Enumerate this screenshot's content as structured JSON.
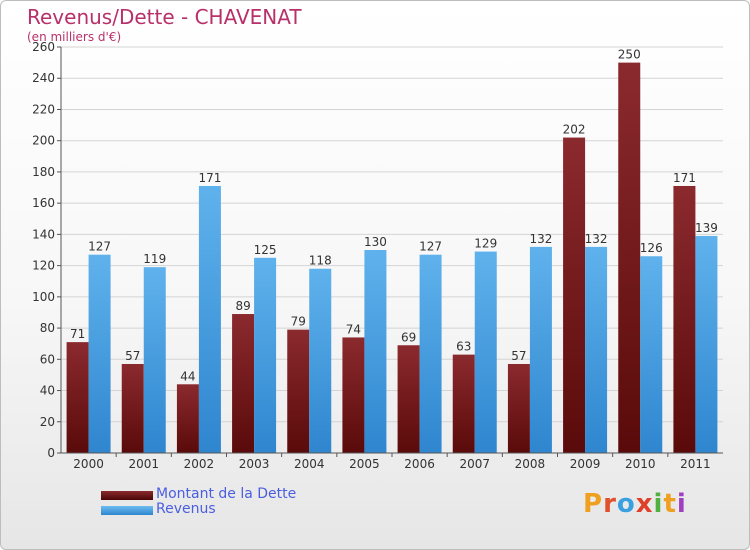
{
  "title": "Revenus/Dette - CHAVENAT",
  "subtitle": "(en milliers d'€)",
  "colors": {
    "title": "#b8306a",
    "debt_top": "#8b2a2e",
    "debt_bottom": "#5a0a0a",
    "revenue_top": "#5fb2ec",
    "revenue_bottom": "#2f86cf",
    "legend_text": "#4a5ee0"
  },
  "chart_data": {
    "type": "bar",
    "categories": [
      "2000",
      "2001",
      "2002",
      "2003",
      "2004",
      "2005",
      "2006",
      "2007",
      "2008",
      "2009",
      "2010",
      "2011"
    ],
    "series": [
      {
        "name": "Montant de la Dette",
        "values": [
          71,
          57,
          44,
          89,
          79,
          74,
          69,
          63,
          57,
          202,
          250,
          171
        ]
      },
      {
        "name": "Revenus",
        "values": [
          127,
          119,
          171,
          125,
          118,
          130,
          127,
          129,
          132,
          132,
          126,
          139
        ]
      }
    ],
    "ylim": [
      0,
      260
    ],
    "yticks": [
      0,
      20,
      40,
      60,
      80,
      100,
      120,
      140,
      160,
      180,
      200,
      220,
      240,
      260
    ],
    "grid": true,
    "legend_position": "bottom-left"
  },
  "legend": {
    "items": [
      {
        "label": "Montant de la Dette",
        "icon": "dark-red-swatch"
      },
      {
        "label": "Revenus",
        "icon": "blue-swatch"
      }
    ]
  },
  "logo": {
    "letters": [
      "P",
      "r",
      "o",
      "x",
      "i",
      "t",
      "i"
    ],
    "colors": [
      "#f0a020",
      "#e0502a",
      "#3aa0e0",
      "#e0402a",
      "#50b040",
      "#f0a020",
      "#a040c0"
    ]
  }
}
